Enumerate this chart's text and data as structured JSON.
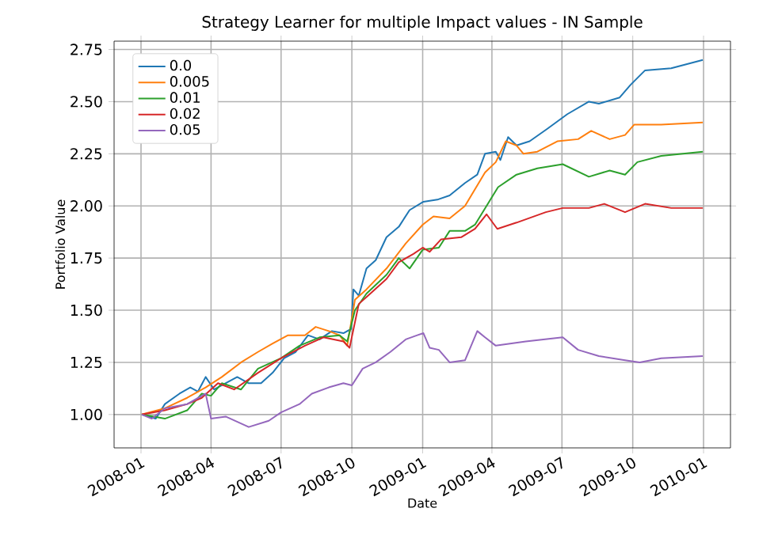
{
  "chart_data": {
    "type": "line",
    "title": "Strategy Learner for multiple Impact values - IN Sample",
    "xlabel": "Date",
    "ylabel": "Portfolio Value",
    "xlim": [
      "2007-11-27",
      "2010-02-05"
    ],
    "ylim": [
      0.84,
      2.79
    ],
    "xticks": [
      {
        "value": "2008-01-01",
        "label": "2008-01"
      },
      {
        "value": "2008-04-01",
        "label": "2008-04"
      },
      {
        "value": "2008-07-01",
        "label": "2008-07"
      },
      {
        "value": "2008-10-01",
        "label": "2008-10"
      },
      {
        "value": "2009-01-01",
        "label": "2009-01"
      },
      {
        "value": "2009-04-01",
        "label": "2009-04"
      },
      {
        "value": "2009-07-01",
        "label": "2009-07"
      },
      {
        "value": "2009-10-01",
        "label": "2009-10"
      },
      {
        "value": "2010-01-01",
        "label": "2010-01"
      }
    ],
    "yticks": [
      {
        "value": 1.0,
        "label": "1.00"
      },
      {
        "value": 1.25,
        "label": "1.25"
      },
      {
        "value": 1.5,
        "label": "1.50"
      },
      {
        "value": 1.75,
        "label": "1.75"
      },
      {
        "value": 2.0,
        "label": "2.00"
      },
      {
        "value": 2.25,
        "label": "2.25"
      },
      {
        "value": 2.5,
        "label": "2.50"
      },
      {
        "value": 2.75,
        "label": "2.75"
      }
    ],
    "grid": true,
    "legend": "top left",
    "series": [
      {
        "name": "0.0",
        "color": "#1f77b4",
        "x": [
          "2008-01-02",
          "2008-01-20",
          "2008-02-01",
          "2008-02-20",
          "2008-03-05",
          "2008-03-15",
          "2008-03-25",
          "2008-04-05",
          "2008-04-20",
          "2008-05-05",
          "2008-05-20",
          "2008-06-05",
          "2008-06-20",
          "2008-07-05",
          "2008-07-20",
          "2008-08-05",
          "2008-08-20",
          "2008-09-05",
          "2008-09-20",
          "2008-09-30",
          "2008-10-03",
          "2008-10-10",
          "2008-10-20",
          "2008-11-01",
          "2008-11-15",
          "2008-12-01",
          "2008-12-15",
          "2009-01-02",
          "2009-01-20",
          "2009-02-05",
          "2009-02-25",
          "2009-03-13",
          "2009-03-23",
          "2009-04-06",
          "2009-04-12",
          "2009-04-22",
          "2009-05-03",
          "2009-05-20",
          "2009-06-12",
          "2009-07-08",
          "2009-08-05",
          "2009-08-18",
          "2009-09-14",
          "2009-09-28",
          "2009-10-17",
          "2009-11-20",
          "2009-12-31"
        ],
        "values": [
          1.0,
          0.98,
          1.05,
          1.1,
          1.13,
          1.11,
          1.18,
          1.12,
          1.15,
          1.18,
          1.15,
          1.15,
          1.2,
          1.27,
          1.3,
          1.38,
          1.36,
          1.4,
          1.39,
          1.41,
          1.6,
          1.57,
          1.7,
          1.74,
          1.85,
          1.9,
          1.98,
          2.02,
          2.03,
          2.05,
          2.11,
          2.15,
          2.25,
          2.26,
          2.22,
          2.33,
          2.29,
          2.31,
          2.37,
          2.44,
          2.5,
          2.49,
          2.52,
          2.58,
          2.65,
          2.66,
          2.7
        ]
      },
      {
        "name": "0.005",
        "color": "#ff7f0e",
        "x": [
          "2008-01-02",
          "2008-02-01",
          "2008-03-01",
          "2008-03-25",
          "2008-04-15",
          "2008-05-10",
          "2008-06-01",
          "2008-06-20",
          "2008-07-10",
          "2008-08-01",
          "2008-08-15",
          "2008-09-01",
          "2008-09-15",
          "2008-09-25",
          "2008-10-05",
          "2008-10-20",
          "2008-11-15",
          "2008-12-10",
          "2009-01-01",
          "2009-01-15",
          "2009-02-05",
          "2009-02-25",
          "2009-03-10",
          "2009-03-23",
          "2009-04-06",
          "2009-04-19",
          "2009-05-03",
          "2009-05-12",
          "2009-05-30",
          "2009-06-25",
          "2009-07-22",
          "2009-08-08",
          "2009-09-01",
          "2009-09-21",
          "2009-10-03",
          "2009-11-07",
          "2009-12-31"
        ],
        "values": [
          1.0,
          1.03,
          1.08,
          1.13,
          1.18,
          1.25,
          1.3,
          1.34,
          1.38,
          1.38,
          1.42,
          1.4,
          1.38,
          1.33,
          1.55,
          1.6,
          1.7,
          1.82,
          1.91,
          1.95,
          1.94,
          2.0,
          2.08,
          2.16,
          2.21,
          2.31,
          2.29,
          2.25,
          2.26,
          2.31,
          2.32,
          2.36,
          2.32,
          2.34,
          2.39,
          2.39,
          2.4
        ]
      },
      {
        "name": "0.01",
        "color": "#2ca02c",
        "x": [
          "2008-01-02",
          "2008-02-01",
          "2008-03-01",
          "2008-03-20",
          "2008-04-01",
          "2008-04-15",
          "2008-05-10",
          "2008-06-01",
          "2008-07-01",
          "2008-07-25",
          "2008-08-20",
          "2008-09-15",
          "2008-09-25",
          "2008-10-05",
          "2008-10-20",
          "2008-11-15",
          "2008-12-01",
          "2008-12-15",
          "2009-01-01",
          "2009-01-22",
          "2009-02-05",
          "2009-02-25",
          "2009-03-10",
          "2009-03-30",
          "2009-04-09",
          "2009-05-03",
          "2009-05-30",
          "2009-07-02",
          "2009-08-05",
          "2009-09-01",
          "2009-09-21",
          "2009-10-07",
          "2009-11-07",
          "2009-12-31"
        ],
        "values": [
          1.0,
          0.98,
          1.02,
          1.1,
          1.09,
          1.15,
          1.12,
          1.22,
          1.27,
          1.33,
          1.37,
          1.38,
          1.35,
          1.5,
          1.58,
          1.67,
          1.75,
          1.7,
          1.79,
          1.8,
          1.88,
          1.88,
          1.91,
          2.03,
          2.09,
          2.15,
          2.18,
          2.2,
          2.14,
          2.17,
          2.15,
          2.21,
          2.24,
          2.26
        ]
      },
      {
        "name": "0.02",
        "color": "#d62728",
        "x": [
          "2008-01-02",
          "2008-02-01",
          "2008-03-01",
          "2008-03-20",
          "2008-04-10",
          "2008-05-01",
          "2008-06-01",
          "2008-07-01",
          "2008-08-01",
          "2008-08-25",
          "2008-09-20",
          "2008-09-28",
          "2008-10-10",
          "2008-10-25",
          "2008-11-15",
          "2008-12-01",
          "2008-12-20",
          "2009-01-01",
          "2009-01-10",
          "2009-01-25",
          "2009-02-20",
          "2009-03-10",
          "2009-03-25",
          "2009-04-08",
          "2009-05-03",
          "2009-06-10",
          "2009-07-02",
          "2009-08-05",
          "2009-08-25",
          "2009-09-21",
          "2009-10-17",
          "2009-11-20",
          "2009-12-31"
        ],
        "values": [
          1.0,
          1.02,
          1.05,
          1.08,
          1.15,
          1.12,
          1.2,
          1.27,
          1.33,
          1.37,
          1.35,
          1.32,
          1.53,
          1.58,
          1.65,
          1.73,
          1.77,
          1.8,
          1.78,
          1.84,
          1.85,
          1.89,
          1.96,
          1.89,
          1.92,
          1.97,
          1.99,
          1.99,
          2.01,
          1.97,
          2.01,
          1.99,
          1.99
        ]
      },
      {
        "name": "0.05",
        "color": "#9467bd",
        "x": [
          "2008-01-02",
          "2008-01-15",
          "2008-02-01",
          "2008-03-01",
          "2008-03-25",
          "2008-04-01",
          "2008-04-20",
          "2008-05-20",
          "2008-06-15",
          "2008-07-01",
          "2008-07-25",
          "2008-08-10",
          "2008-09-01",
          "2008-09-20",
          "2008-10-01",
          "2008-10-15",
          "2008-11-01",
          "2008-11-20",
          "2008-12-10",
          "2008-12-25",
          "2009-01-02",
          "2009-01-10",
          "2009-01-22",
          "2009-02-05",
          "2009-02-25",
          "2009-03-13",
          "2009-03-23",
          "2009-04-06",
          "2009-05-15",
          "2009-07-02",
          "2009-07-22",
          "2009-08-18",
          "2009-09-21",
          "2009-10-10",
          "2009-11-07",
          "2009-12-31"
        ],
        "values": [
          1.0,
          0.98,
          1.03,
          1.05,
          1.1,
          0.98,
          0.99,
          0.94,
          0.97,
          1.01,
          1.05,
          1.1,
          1.13,
          1.15,
          1.14,
          1.22,
          1.25,
          1.3,
          1.36,
          1.38,
          1.39,
          1.32,
          1.31,
          1.25,
          1.26,
          1.4,
          1.37,
          1.33,
          1.35,
          1.37,
          1.31,
          1.28,
          1.26,
          1.25,
          1.27,
          1.28
        ]
      }
    ]
  }
}
